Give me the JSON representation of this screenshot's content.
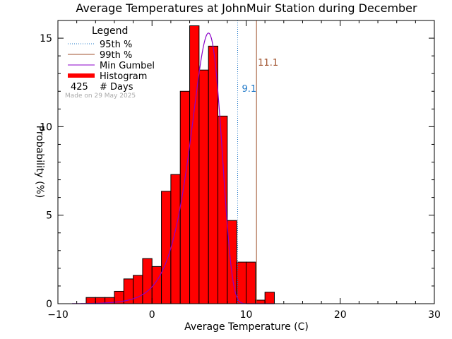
{
  "chart_data": {
    "type": "bar",
    "title": "Average Temperatures at JohnMuir Station during December",
    "xlabel": "Average Temperature (C)",
    "ylabel": "Probability (%)",
    "xlim": [
      -10,
      30
    ],
    "ylim": [
      0,
      16
    ],
    "xticks": [
      -10,
      0,
      10,
      20,
      30
    ],
    "yticks": [
      0,
      5,
      10,
      15
    ],
    "bin_width": 1,
    "histogram": [
      {
        "x0": -7,
        "value": 0.35
      },
      {
        "x0": -6,
        "value": 0.35
      },
      {
        "x0": -5,
        "value": 0.35
      },
      {
        "x0": -4,
        "value": 0.7
      },
      {
        "x0": -3,
        "value": 1.4
      },
      {
        "x0": -2,
        "value": 1.6
      },
      {
        "x0": -1,
        "value": 2.55
      },
      {
        "x0": 0,
        "value": 2.1
      },
      {
        "x0": 1,
        "value": 6.35
      },
      {
        "x0": 2,
        "value": 7.3
      },
      {
        "x0": 3,
        "value": 12.0
      },
      {
        "x0": 4,
        "value": 15.7
      },
      {
        "x0": 5,
        "value": 13.2
      },
      {
        "x0": 6,
        "value": 14.55
      },
      {
        "x0": 7,
        "value": 10.6
      },
      {
        "x0": 8,
        "value": 4.7
      },
      {
        "x0": 9,
        "value": 2.35
      },
      {
        "x0": 10,
        "value": 2.35
      },
      {
        "x0": 11,
        "value": 0.2
      },
      {
        "x0": 12,
        "value": 0.65
      }
    ],
    "gumbel": {
      "mu": 6.0,
      "beta": 1.6,
      "scale": 66.5,
      "xrange": [
        -8.5,
        13
      ]
    },
    "percentiles": [
      {
        "name": "95th %",
        "value": 9.1,
        "label": "9.1",
        "color": "#1f78c8"
      },
      {
        "name": "99th %",
        "value": 11.1,
        "label": "11.1",
        "color": "#a0522d"
      }
    ],
    "legend": {
      "title": "Legend",
      "placement": "top-left",
      "entries": [
        {
          "label": "95th %",
          "kind": "dotted",
          "color": "#1f78c8"
        },
        {
          "label": "99th %",
          "kind": "solid",
          "color": "#a0522d"
        },
        {
          "label": "Min Gumbel",
          "kind": "solid",
          "color": "#8b00c8"
        },
        {
          "label": "Histogram",
          "kind": "thick",
          "color": "#ff0000"
        }
      ],
      "days_count": "425",
      "days_label": "# Days"
    },
    "note": "Made on 29 May 2025",
    "colors": {
      "histogram": "#ff0000",
      "gumbel": "#8b00c8",
      "axis": "#000000",
      "note": "#aaaaaa"
    }
  }
}
